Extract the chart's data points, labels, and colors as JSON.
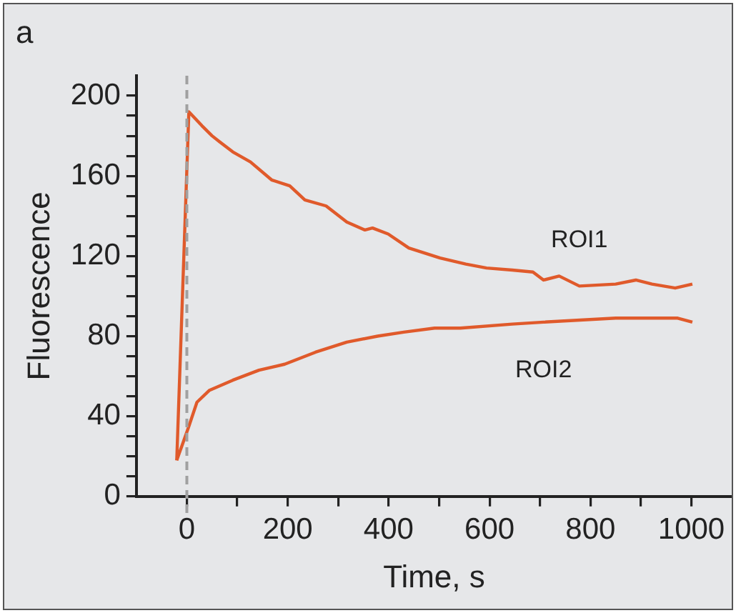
{
  "chart_data": {
    "type": "line",
    "xlabel": "Time, s",
    "ylabel": "Fluorescence",
    "annotations": [
      "a"
    ],
    "xlim": [
      -100,
      1080
    ],
    "xticks": [
      0,
      {
        "value": 100,
        "label": null
      },
      200,
      {
        "value": 300,
        "label": null
      },
      400,
      {
        "value": 500,
        "label": null
      },
      600,
      {
        "value": 700,
        "label": null
      },
      800,
      {
        "value": 900,
        "label": null
      },
      1000
    ],
    "ylim": [
      0,
      210
    ],
    "yticks": [
      0,
      {
        "value": 10,
        "label": null
      },
      {
        "value": 20,
        "label": null
      },
      {
        "value": 30,
        "label": null
      },
      40,
      {
        "value": 50,
        "label": null
      },
      {
        "value": 60,
        "label": null
      },
      {
        "value": 70,
        "label": null
      },
      80,
      {
        "value": 90,
        "label": null
      },
      {
        "value": 100,
        "label": null
      },
      {
        "value": 110,
        "label": null
      },
      120,
      {
        "value": 130,
        "label": null
      },
      {
        "value": 140,
        "label": null
      },
      {
        "value": 150,
        "label": null
      },
      160,
      {
        "value": 170,
        "label": null
      },
      {
        "value": 180,
        "label": null
      },
      {
        "value": 190,
        "label": null
      },
      200
    ],
    "grid": false,
    "legend": false,
    "marker": "none",
    "line_style": "solid",
    "ref_lines": [
      {
        "axis": "x",
        "value": 0,
        "color": "#a0a0a0",
        "line_style": "dashed"
      }
    ],
    "series": [
      {
        "name": "ROI1",
        "color": "#e05a2b",
        "x": [
          -20,
          4,
          30,
          50,
          65,
          91,
          126,
          168,
          204,
          234,
          276,
          317,
          353,
          368,
          399,
          440,
          502,
          553,
          594,
          645,
          686,
          707,
          738,
          778,
          850,
          890,
          922,
          968,
          1002
        ],
        "values": [
          18,
          192,
          185,
          180,
          177,
          172,
          167,
          158,
          155,
          148,
          145,
          137,
          133,
          134,
          131,
          124,
          119,
          116,
          114,
          113,
          112,
          108,
          110,
          105,
          106,
          108,
          106,
          104,
          106
        ]
      },
      {
        "name": "ROI2",
        "color": "#e05a2b",
        "x": [
          -20,
          4,
          20,
          45,
          91,
          143,
          194,
          255,
          317,
          378,
          430,
          491,
          542,
          645,
          707,
          850,
          973,
          1002
        ],
        "values": [
          18,
          35,
          47,
          53,
          58,
          63,
          66,
          72,
          77,
          80,
          82,
          84,
          84,
          86,
          87,
          89,
          89,
          87
        ]
      }
    ]
  }
}
